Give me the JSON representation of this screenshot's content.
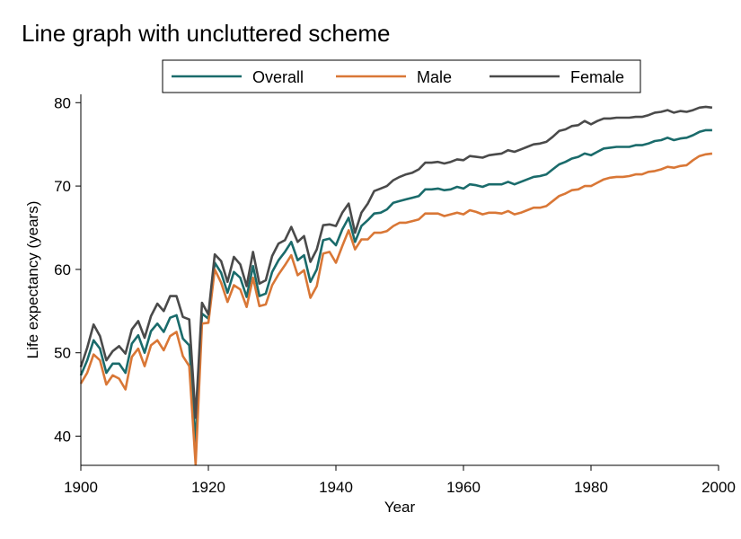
{
  "chart_data": {
    "type": "line",
    "title": "Line graph with uncluttered scheme",
    "xlabel": "Year",
    "ylabel": "Life expectancy (years)",
    "xlim": [
      1900,
      2000
    ],
    "ylim": [
      36.5,
      81
    ],
    "x_ticks": [
      1900,
      1920,
      1940,
      1960,
      1980,
      2000
    ],
    "y_ticks": [
      40,
      50,
      60,
      70,
      80
    ],
    "grid": false,
    "legend": "top",
    "x": [
      1900,
      1901,
      1902,
      1903,
      1904,
      1905,
      1906,
      1907,
      1908,
      1909,
      1910,
      1911,
      1912,
      1913,
      1914,
      1915,
      1916,
      1917,
      1918,
      1919,
      1920,
      1921,
      1922,
      1923,
      1924,
      1925,
      1926,
      1927,
      1928,
      1929,
      1930,
      1931,
      1932,
      1933,
      1934,
      1935,
      1936,
      1937,
      1938,
      1939,
      1940,
      1941,
      1942,
      1943,
      1944,
      1945,
      1946,
      1947,
      1948,
      1949,
      1950,
      1951,
      1952,
      1953,
      1954,
      1955,
      1956,
      1957,
      1958,
      1959,
      1960,
      1961,
      1962,
      1963,
      1964,
      1965,
      1966,
      1967,
      1968,
      1969,
      1970,
      1971,
      1972,
      1973,
      1974,
      1975,
      1976,
      1977,
      1978,
      1979,
      1980,
      1981,
      1982,
      1983,
      1984,
      1985,
      1986,
      1987,
      1988,
      1989,
      1990,
      1991,
      1992,
      1993,
      1994,
      1995,
      1996,
      1997,
      1998,
      1999
    ],
    "series": [
      {
        "name": "Overall",
        "color": "#1a6b6b",
        "values": [
          47.3,
          49.1,
          51.5,
          50.5,
          47.6,
          48.7,
          48.7,
          47.6,
          51.1,
          52.1,
          50.0,
          52.6,
          53.5,
          52.5,
          54.2,
          54.5,
          51.7,
          50.9,
          39.1,
          54.7,
          54.1,
          60.8,
          59.6,
          57.2,
          59.7,
          59.0,
          56.7,
          60.4,
          56.8,
          57.1,
          59.7,
          61.1,
          62.1,
          63.3,
          61.1,
          61.7,
          58.5,
          60.0,
          63.5,
          63.7,
          62.9,
          64.8,
          66.2,
          63.3,
          65.2,
          65.9,
          66.7,
          66.8,
          67.2,
          68.0,
          68.2,
          68.4,
          68.6,
          68.8,
          69.6,
          69.6,
          69.7,
          69.5,
          69.6,
          69.9,
          69.7,
          70.2,
          70.1,
          69.9,
          70.2,
          70.2,
          70.2,
          70.5,
          70.2,
          70.5,
          70.8,
          71.1,
          71.2,
          71.4,
          72.0,
          72.6,
          72.9,
          73.3,
          73.5,
          73.9,
          73.7,
          74.1,
          74.5,
          74.6,
          74.7,
          74.7,
          74.7,
          74.9,
          74.9,
          75.1,
          75.4,
          75.5,
          75.8,
          75.5,
          75.7,
          75.8,
          76.1,
          76.5,
          76.7,
          76.7
        ]
      },
      {
        "name": "Male",
        "color": "#d97736",
        "values": [
          46.3,
          47.6,
          49.8,
          49.1,
          46.2,
          47.3,
          46.9,
          45.6,
          49.5,
          50.5,
          48.4,
          50.9,
          51.5,
          50.3,
          52.0,
          52.5,
          49.6,
          48.4,
          36.6,
          53.5,
          53.6,
          60.0,
          58.4,
          56.1,
          58.1,
          57.6,
          55.5,
          59.0,
          55.6,
          55.8,
          58.1,
          59.4,
          60.5,
          61.7,
          59.3,
          59.9,
          56.6,
          58.0,
          61.9,
          62.1,
          60.8,
          62.8,
          64.7,
          62.4,
          63.6,
          63.6,
          64.4,
          64.4,
          64.6,
          65.2,
          65.6,
          65.6,
          65.8,
          66.0,
          66.7,
          66.7,
          66.7,
          66.4,
          66.6,
          66.8,
          66.6,
          67.1,
          66.9,
          66.6,
          66.8,
          66.8,
          66.7,
          67.0,
          66.6,
          66.8,
          67.1,
          67.4,
          67.4,
          67.6,
          68.2,
          68.8,
          69.1,
          69.5,
          69.6,
          70.0,
          70.0,
          70.4,
          70.8,
          71.0,
          71.1,
          71.1,
          71.2,
          71.4,
          71.4,
          71.7,
          71.8,
          72.0,
          72.3,
          72.2,
          72.4,
          72.5,
          73.1,
          73.6,
          73.8,
          73.9
        ]
      },
      {
        "name": "Female",
        "color": "#4a4a4a",
        "values": [
          48.3,
          50.6,
          53.4,
          52.0,
          49.1,
          50.2,
          50.8,
          49.9,
          52.8,
          53.8,
          51.8,
          54.4,
          55.9,
          55.0,
          56.8,
          56.8,
          54.3,
          54.0,
          42.2,
          56.0,
          54.6,
          61.8,
          61.0,
          58.5,
          61.5,
          60.6,
          58.0,
          62.1,
          58.3,
          58.7,
          61.6,
          63.1,
          63.5,
          65.1,
          63.3,
          64.0,
          60.9,
          62.4,
          65.3,
          65.4,
          65.2,
          66.8,
          67.9,
          64.4,
          66.8,
          67.9,
          69.4,
          69.7,
          70.0,
          70.7,
          71.1,
          71.4,
          71.6,
          72.0,
          72.8,
          72.8,
          72.9,
          72.7,
          72.9,
          73.2,
          73.1,
          73.6,
          73.5,
          73.4,
          73.7,
          73.8,
          73.9,
          74.3,
          74.1,
          74.4,
          74.7,
          75.0,
          75.1,
          75.3,
          75.9,
          76.6,
          76.8,
          77.2,
          77.3,
          77.8,
          77.4,
          77.8,
          78.1,
          78.1,
          78.2,
          78.2,
          78.2,
          78.3,
          78.3,
          78.5,
          78.8,
          78.9,
          79.1,
          78.8,
          79.0,
          78.9,
          79.1,
          79.4,
          79.5,
          79.4
        ]
      }
    ]
  }
}
